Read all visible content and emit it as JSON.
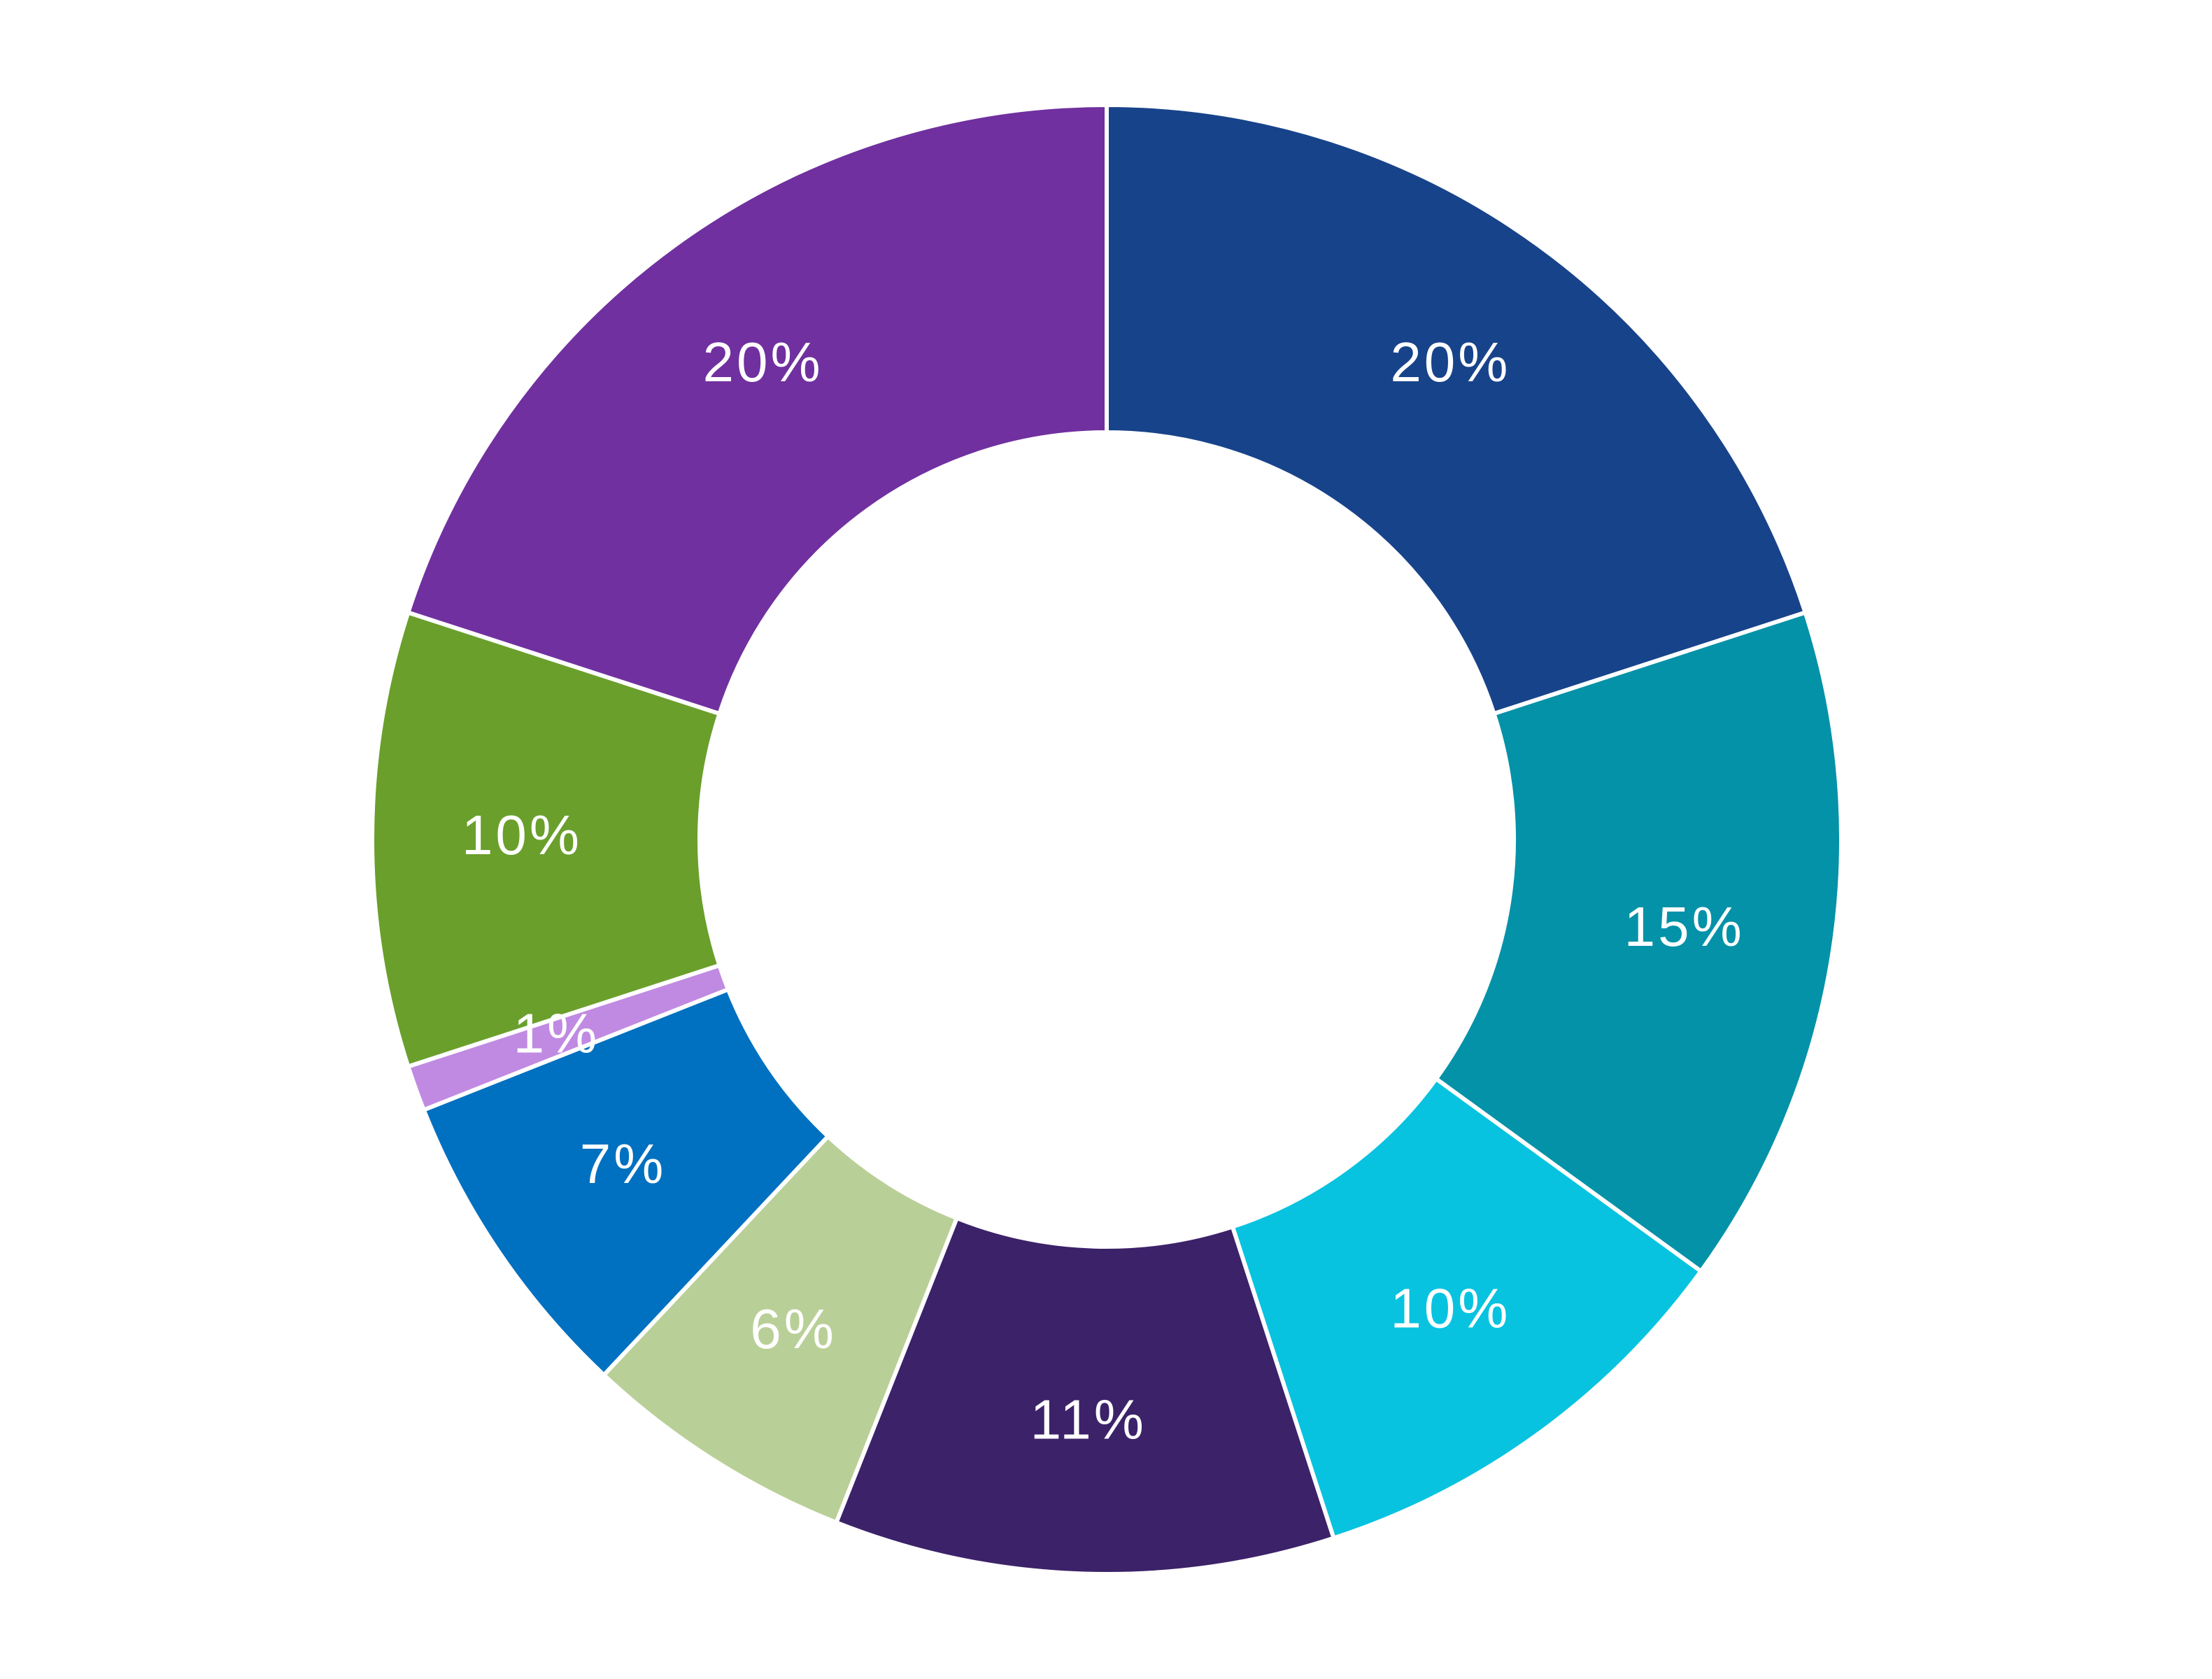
{
  "chart_data": {
    "type": "pie",
    "style": "donut",
    "start_angle_deg": 0,
    "direction": "clockwise",
    "slices": [
      {
        "value": 20,
        "label": "20%",
        "color": "#17438a"
      },
      {
        "value": 15,
        "label": "15%",
        "color": "#0492a8"
      },
      {
        "value": 10,
        "label": "10%",
        "color": "#08c3df"
      },
      {
        "value": 11,
        "label": "11%",
        "color": "#3c2269"
      },
      {
        "value": 6,
        "label": "6%",
        "color": "#b9cf98"
      },
      {
        "value": 7,
        "label": "7%",
        "color": "#0070c0"
      },
      {
        "value": 1,
        "label": "1%",
        "color": "#c08ae2"
      },
      {
        "value": 10,
        "label": "10%",
        "color": "#6a9f2c"
      },
      {
        "value": 20,
        "label": "20%",
        "color": "#70309f"
      }
    ]
  }
}
